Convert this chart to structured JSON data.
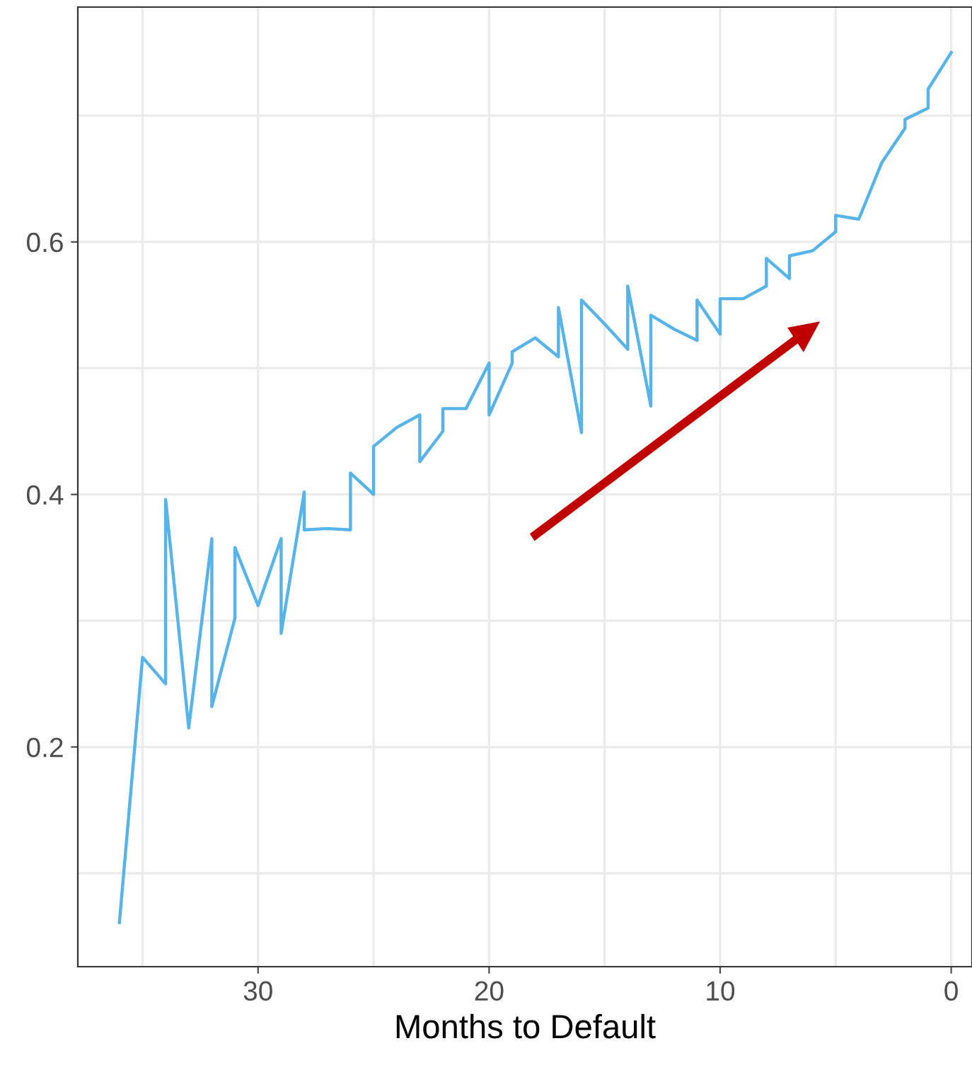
{
  "chart_data": {
    "type": "line",
    "xlabel": "Months to Default",
    "series": [
      {
        "color": "#56b4e9",
        "x": [
          36,
          35,
          34,
          34,
          33,
          32,
          32,
          31,
          31,
          30,
          29,
          29,
          28,
          28,
          27,
          26,
          26,
          25,
          25,
          24,
          23,
          23,
          22,
          22,
          21,
          20,
          20,
          19,
          19,
          18,
          17,
          17,
          16,
          16,
          15,
          14,
          14,
          13,
          13,
          12,
          11,
          11,
          10,
          10,
          9,
          8,
          8,
          7,
          7,
          6,
          5,
          5,
          4,
          3,
          2,
          2,
          1,
          1,
          0
        ],
        "values": [
          0.061,
          0.271,
          0.25,
          0.396,
          0.215,
          0.365,
          0.232,
          0.302,
          0.358,
          0.312,
          0.365,
          0.29,
          0.402,
          0.372,
          0.373,
          0.372,
          0.417,
          0.4,
          0.438,
          0.453,
          0.463,
          0.426,
          0.45,
          0.468,
          0.468,
          0.504,
          0.463,
          0.504,
          0.513,
          0.524,
          0.509,
          0.548,
          0.449,
          0.554,
          0.535,
          0.515,
          0.565,
          0.47,
          0.542,
          0.531,
          0.522,
          0.554,
          0.527,
          0.555,
          0.555,
          0.565,
          0.587,
          0.571,
          0.589,
          0.593,
          0.608,
          0.621,
          0.618,
          0.663,
          0.69,
          0.697,
          0.706,
          0.721,
          0.75
        ]
      }
    ],
    "xlim": [
      37.8,
      -0.9
    ],
    "xticks": [
      {
        "value": 35,
        "label": null
      },
      30,
      {
        "value": 25,
        "label": null
      },
      20,
      {
        "value": 15,
        "label": null
      },
      10,
      {
        "value": 5,
        "label": null
      },
      0
    ],
    "ylim": [
      0.026,
      0.786
    ],
    "yticks": [
      {
        "value": 0.1,
        "label": null
      },
      0.2,
      {
        "value": 0.3,
        "label": null
      },
      0.4,
      {
        "value": 0.5,
        "label": null
      },
      0.6,
      {
        "value": 0.7,
        "label": null
      }
    ],
    "grid": true,
    "marker": "none",
    "line_style": "solid"
  }
}
